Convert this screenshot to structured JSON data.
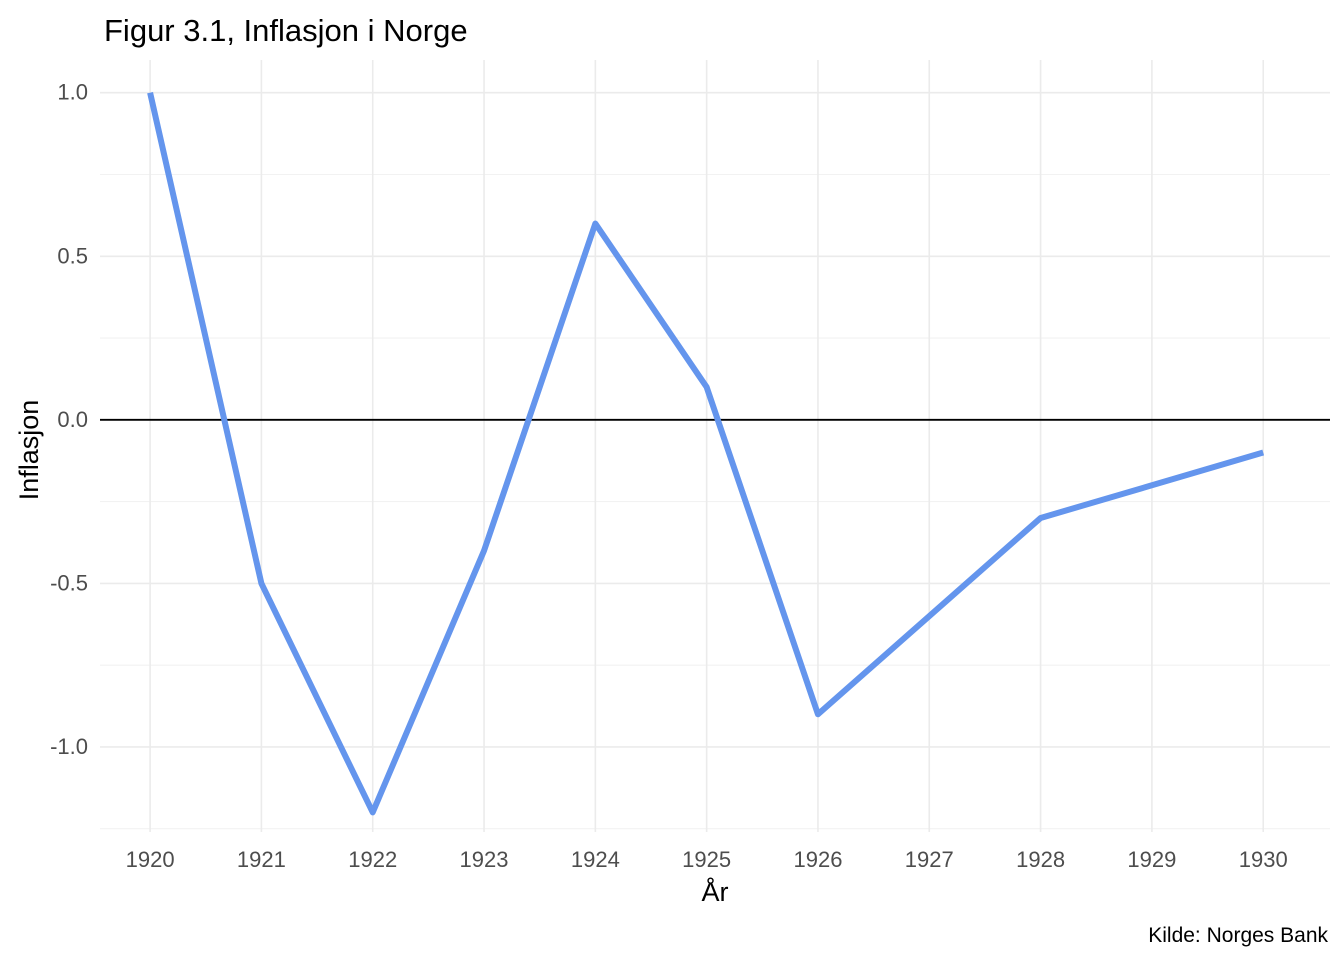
{
  "chart_data": {
    "type": "line",
    "title": "Figur 3.1, Inflasjon i Norge",
    "xlabel": "År",
    "ylabel": "Inflasjon",
    "caption": "Kilde: Norges Bank",
    "x": [
      1920,
      1921,
      1922,
      1923,
      1924,
      1925,
      1926,
      1927,
      1928,
      1929,
      1930
    ],
    "x_tick_labels": [
      "1920",
      "1921",
      "1922",
      "1923",
      "1924",
      "1925",
      "1926",
      "1927",
      "1928",
      "1929",
      "1930"
    ],
    "series": [
      {
        "values": [
          1.0,
          -0.5,
          -1.2,
          -0.4,
          0.6,
          0.1,
          -0.9,
          -0.6,
          -0.3,
          -0.2,
          -0.1
        ],
        "color": "#6495ED"
      }
    ],
    "y_ticks": [
      1.0,
      0.5,
      0.0,
      -0.5,
      -1.0
    ],
    "y_tick_labels": [
      "1.0",
      "0.5",
      "0.0",
      "-0.5",
      "-1.0"
    ],
    "xlim": [
      1919.55,
      1930.6
    ],
    "ylim": [
      -1.26,
      1.1
    ],
    "reference_line": {
      "y": 0,
      "color": "#000000"
    },
    "grid": true,
    "legend": "none"
  }
}
